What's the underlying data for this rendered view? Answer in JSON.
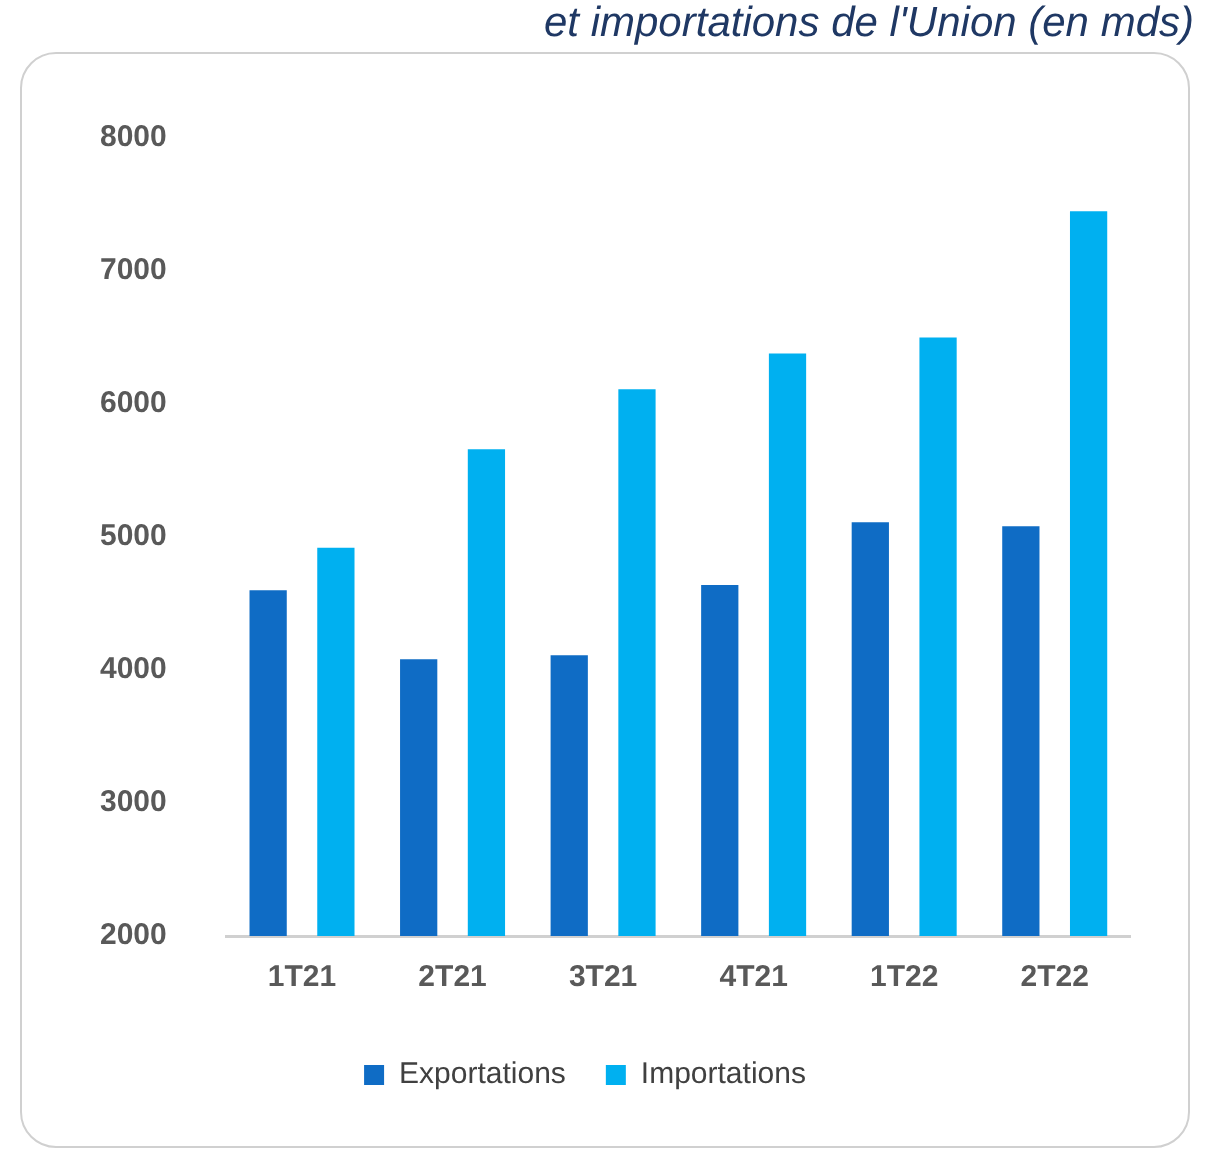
{
  "chart_data": {
    "type": "bar",
    "title": "et importations de l'Union (en mds)",
    "categories": [
      "1T21",
      "2T21",
      "3T21",
      "4T21",
      "1T22",
      "2T22"
    ],
    "series": [
      {
        "name": "Exportations",
        "color": "#0f6cc5",
        "values": [
          4600,
          4080,
          4110,
          4640,
          5110,
          5080
        ]
      },
      {
        "name": "Importations",
        "color": "#00b0f0",
        "values": [
          4920,
          5660,
          6110,
          6380,
          6500,
          7450
        ]
      }
    ],
    "ylim": [
      2000,
      8000
    ],
    "yticks": [
      2000,
      3000,
      4000,
      5000,
      6000,
      7000,
      8000
    ],
    "grid": false,
    "legend": "bottom"
  }
}
